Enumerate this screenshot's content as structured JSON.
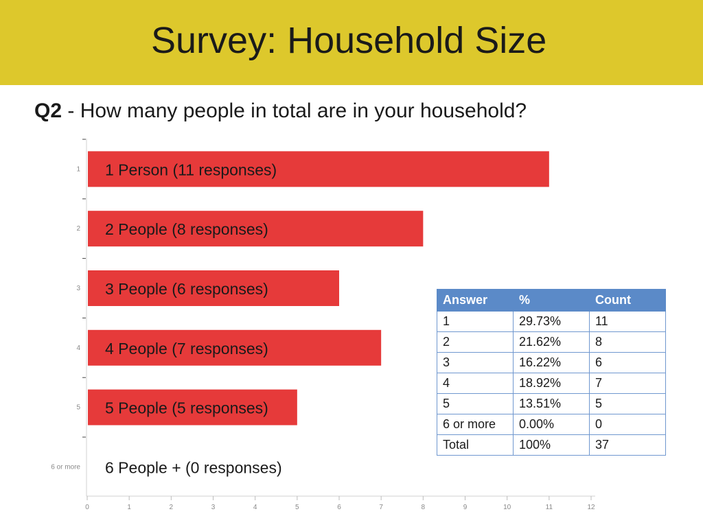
{
  "header": {
    "title": "Survey: Household Size",
    "background": "#ddc82c"
  },
  "question": {
    "number": "Q2",
    "text": " - How many people in total are in your household?"
  },
  "chart_data": {
    "type": "bar",
    "orientation": "horizontal",
    "categories": [
      "1",
      "2",
      "3",
      "4",
      "5",
      "6 or more"
    ],
    "values": [
      11,
      8,
      6,
      7,
      5,
      0
    ],
    "bar_labels": [
      "1 Person (11 responses)",
      "2 People (8 responses)",
      "3 People (6 responses)",
      "4 People (7 responses)",
      "5 People (5 responses)",
      "6 People + (0 responses)"
    ],
    "xlim": [
      0,
      12
    ],
    "xticks": [
      "0",
      "1",
      "2",
      "3",
      "4",
      "5",
      "6",
      "7",
      "8",
      "9",
      "10",
      "11",
      "12"
    ],
    "bar_color": "#e63a3a",
    "grid": false
  },
  "table": {
    "headers": [
      "Answer",
      "%",
      "Count"
    ],
    "rows": [
      [
        "1",
        "29.73%",
        "11"
      ],
      [
        "2",
        "21.62%",
        "8"
      ],
      [
        "3",
        "16.22%",
        "6"
      ],
      [
        "4",
        "18.92%",
        "7"
      ],
      [
        "5",
        "13.51%",
        "5"
      ],
      [
        "6 or more",
        "0.00%",
        "0"
      ],
      [
        "Total",
        "100%",
        "37"
      ]
    ],
    "header_color": "#5b8ac8"
  }
}
